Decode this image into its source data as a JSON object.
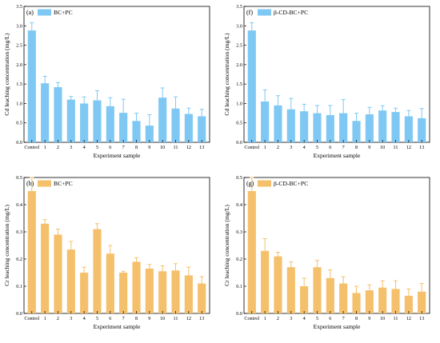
{
  "chart_data": [
    {
      "type": "bar",
      "panel_label": "(a)",
      "legend": "BC+PC",
      "color": "#7fc8f3",
      "xlabel": "Experiment sample",
      "ylabel": "Cd leaching concentration (mg/L)",
      "categories": [
        "Control",
        "1",
        "2",
        "3",
        "4",
        "5",
        "6",
        "7",
        "8",
        "9",
        "10",
        "11",
        "12",
        "13"
      ],
      "values": [
        2.88,
        1.52,
        1.42,
        1.1,
        1.0,
        1.08,
        0.93,
        0.76,
        0.55,
        0.43,
        1.15,
        0.87,
        0.73,
        0.67
      ],
      "errors": [
        0.2,
        0.18,
        0.12,
        0.08,
        0.17,
        0.25,
        0.22,
        0.35,
        0.2,
        0.28,
        0.25,
        0.3,
        0.15,
        0.18
      ],
      "ylim": [
        0,
        3.5
      ],
      "yticks": [
        "0.0",
        "0.5",
        "1.0",
        "1.5",
        "2.0",
        "2.5",
        "3.0",
        "3.5"
      ]
    },
    {
      "type": "bar",
      "panel_label": "(f)",
      "legend": "β-CD-BC+PC",
      "color": "#7fc8f3",
      "xlabel": "Experiment sample",
      "ylabel": "Cd leaching concentration (mg/L)",
      "categories": [
        "Control",
        "1",
        "2",
        "3",
        "4",
        "5",
        "6",
        "7",
        "8",
        "9",
        "10",
        "11",
        "12",
        "13"
      ],
      "values": [
        2.88,
        1.05,
        0.95,
        0.85,
        0.8,
        0.75,
        0.7,
        0.75,
        0.55,
        0.72,
        0.82,
        0.78,
        0.67,
        0.62
      ],
      "errors": [
        0.2,
        0.3,
        0.25,
        0.28,
        0.18,
        0.2,
        0.25,
        0.35,
        0.2,
        0.18,
        0.12,
        0.1,
        0.15,
        0.25
      ],
      "ylim": [
        0,
        3.5
      ],
      "yticks": [
        "0.0",
        "0.5",
        "1.0",
        "1.5",
        "2.0",
        "2.5",
        "3.0",
        "3.5"
      ]
    },
    {
      "type": "bar",
      "panel_label": "(b)",
      "legend": "BC+PC",
      "color": "#f5c06b",
      "xlabel": "Experiment sample",
      "ylabel": "Cr leaching concentration (mg/L)",
      "categories": [
        "Control",
        "1",
        "2",
        "3",
        "4",
        "5",
        "6",
        "7",
        "8",
        "9",
        "10",
        "11",
        "12",
        "13"
      ],
      "values": [
        0.45,
        0.33,
        0.29,
        0.235,
        0.15,
        0.31,
        0.22,
        0.15,
        0.19,
        0.165,
        0.155,
        0.158,
        0.14,
        0.11
      ],
      "errors": [
        0.05,
        0.015,
        0.02,
        0.03,
        0.02,
        0.02,
        0.03,
        0.005,
        0.015,
        0.015,
        0.02,
        0.025,
        0.03,
        0.025
      ],
      "ylim": [
        0,
        0.5
      ],
      "yticks": [
        "0.0",
        "0.1",
        "0.2",
        "0.3",
        "0.4",
        "0.5"
      ]
    },
    {
      "type": "bar",
      "panel_label": "(g)",
      "legend": "β-CD-BC+PC",
      "color": "#f5c06b",
      "xlabel": "Experiment sample",
      "ylabel": "Cr leaching concentration (mg/L)",
      "categories": [
        "Control",
        "1",
        "2",
        "3",
        "4",
        "5",
        "6",
        "7",
        "8",
        "9",
        "10",
        "11",
        "12",
        "13"
      ],
      "values": [
        0.45,
        0.23,
        0.21,
        0.17,
        0.1,
        0.17,
        0.13,
        0.11,
        0.075,
        0.085,
        0.095,
        0.09,
        0.065,
        0.08
      ],
      "errors": [
        0.05,
        0.045,
        0.015,
        0.02,
        0.03,
        0.025,
        0.03,
        0.025,
        0.025,
        0.02,
        0.025,
        0.03,
        0.025,
        0.03
      ],
      "ylim": [
        0,
        0.5
      ],
      "yticks": [
        "0.0",
        "0.1",
        "0.2",
        "0.3",
        "0.4",
        "0.5"
      ]
    }
  ]
}
